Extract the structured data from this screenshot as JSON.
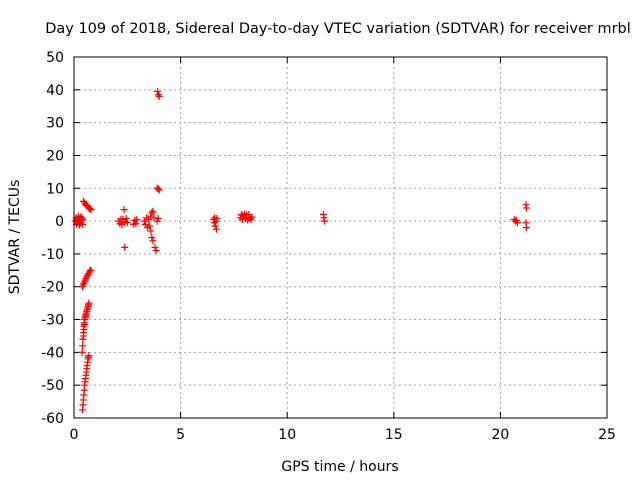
{
  "chart_data": {
    "type": "scatter",
    "title": "Day 109 of 2018, Sidereal Day-to-day VTEC variation (SDTVAR) for receiver mrbl",
    "xlabel": "GPS time / hours",
    "ylabel": "SDTVAR / TECUs",
    "xlim": [
      0,
      25
    ],
    "ylim": [
      -60,
      50
    ],
    "xticks": [
      0,
      5,
      10,
      15,
      20,
      25
    ],
    "yticks": [
      -60,
      -50,
      -40,
      -30,
      -20,
      -10,
      0,
      10,
      20,
      30,
      40,
      50
    ],
    "xtick_labels": [
      "0",
      "5",
      "10",
      "15",
      "20",
      "25"
    ],
    "ytick_labels": [
      "-60",
      "-50",
      "-40",
      "-30",
      "-20",
      "-10",
      "0",
      "10",
      "20",
      "30",
      "40",
      "50"
    ],
    "grid": true,
    "marker": "plus",
    "color": "#ff0000",
    "series": [
      {
        "name": "SDTVAR",
        "points": [
          [
            0.05,
            0.0
          ],
          [
            0.1,
            1.0
          ],
          [
            0.12,
            -1.0
          ],
          [
            0.15,
            0.5
          ],
          [
            0.18,
            -0.5
          ],
          [
            0.2,
            1.5
          ],
          [
            0.22,
            0.0
          ],
          [
            0.25,
            -1.2
          ],
          [
            0.28,
            0.8
          ],
          [
            0.3,
            1.2
          ],
          [
            0.32,
            -0.6
          ],
          [
            0.35,
            0.3
          ],
          [
            0.38,
            1.0
          ],
          [
            0.4,
            -1.0
          ],
          [
            0.42,
            0.5
          ],
          [
            0.45,
            6.0
          ],
          [
            0.5,
            5.5
          ],
          [
            0.55,
            5.0
          ],
          [
            0.6,
            4.8
          ],
          [
            0.65,
            4.5
          ],
          [
            0.7,
            4.0
          ],
          [
            0.75,
            3.8
          ],
          [
            0.8,
            3.5
          ],
          [
            0.4,
            -20.0
          ],
          [
            0.43,
            -19.5
          ],
          [
            0.46,
            -19.0
          ],
          [
            0.5,
            -18.5
          ],
          [
            0.53,
            -18.0
          ],
          [
            0.56,
            -17.5
          ],
          [
            0.6,
            -17.0
          ],
          [
            0.64,
            -16.5
          ],
          [
            0.68,
            -16.0
          ],
          [
            0.72,
            -15.5
          ],
          [
            0.76,
            -15.0
          ],
          [
            0.8,
            -15.0
          ],
          [
            0.38,
            -40.0
          ],
          [
            0.4,
            -38.0
          ],
          [
            0.42,
            -36.0
          ],
          [
            0.44,
            -34.0
          ],
          [
            0.46,
            -32.0
          ],
          [
            0.48,
            -31.0
          ],
          [
            0.5,
            -30.0
          ],
          [
            0.52,
            -29.5
          ],
          [
            0.54,
            -29.0
          ],
          [
            0.56,
            -28.5
          ],
          [
            0.58,
            -28.0
          ],
          [
            0.6,
            -27.5
          ],
          [
            0.62,
            -27.0
          ],
          [
            0.64,
            -26.5
          ],
          [
            0.66,
            -26.0
          ],
          [
            0.68,
            -25.5
          ],
          [
            0.7,
            -25.0
          ],
          [
            0.45,
            -35.0
          ],
          [
            0.47,
            -33.0
          ],
          [
            0.49,
            -31.5
          ],
          [
            0.4,
            -57.5
          ],
          [
            0.42,
            -56.0
          ],
          [
            0.44,
            -54.5
          ],
          [
            0.46,
            -53.0
          ],
          [
            0.48,
            -51.5
          ],
          [
            0.5,
            -50.0
          ],
          [
            0.52,
            -49.0
          ],
          [
            0.54,
            -48.0
          ],
          [
            0.56,
            -47.0
          ],
          [
            0.58,
            -46.0
          ],
          [
            0.6,
            -45.0
          ],
          [
            0.62,
            -44.0
          ],
          [
            0.64,
            -43.0
          ],
          [
            0.66,
            -42.0
          ],
          [
            0.68,
            -41.5
          ],
          [
            0.7,
            -41.0
          ],
          [
            2.1,
            0.0
          ],
          [
            2.15,
            -0.8
          ],
          [
            2.2,
            0.6
          ],
          [
            2.25,
            -1.0
          ],
          [
            2.3,
            0.5
          ],
          [
            2.35,
            3.5
          ],
          [
            2.4,
            -0.3
          ],
          [
            2.45,
            0.8
          ],
          [
            2.5,
            -0.5
          ],
          [
            2.38,
            -8.0
          ],
          [
            2.8,
            -1.0
          ],
          [
            2.85,
            0.2
          ],
          [
            2.9,
            -0.8
          ],
          [
            2.95,
            0.5
          ],
          [
            3.3,
            0.0
          ],
          [
            3.35,
            -1.0
          ],
          [
            3.4,
            1.0
          ],
          [
            3.45,
            -2.0
          ],
          [
            3.5,
            0.5
          ],
          [
            3.55,
            -1.5
          ],
          [
            3.6,
            1.5
          ],
          [
            3.65,
            2.5
          ],
          [
            3.7,
            3.0
          ],
          [
            3.75,
            1.0
          ],
          [
            3.6,
            -3.0
          ],
          [
            3.65,
            -5.0
          ],
          [
            3.7,
            -6.0
          ],
          [
            3.8,
            -8.0
          ],
          [
            3.85,
            -9.0
          ],
          [
            3.9,
            0.0
          ],
          [
            3.95,
            0.8
          ],
          [
            3.9,
            10.0
          ],
          [
            3.95,
            9.8
          ],
          [
            4.0,
            9.5
          ],
          [
            3.92,
            39.5
          ],
          [
            3.96,
            38.5
          ],
          [
            4.0,
            38.0
          ],
          [
            6.55,
            0.5
          ],
          [
            6.58,
            -0.5
          ],
          [
            6.6,
            1.0
          ],
          [
            6.62,
            -1.5
          ],
          [
            6.65,
            0.0
          ],
          [
            6.68,
            -2.5
          ],
          [
            6.7,
            0.8
          ],
          [
            7.8,
            1.0
          ],
          [
            7.85,
            2.0
          ],
          [
            7.9,
            0.5
          ],
          [
            7.95,
            1.5
          ],
          [
            8.0,
            2.2
          ],
          [
            8.05,
            0.8
          ],
          [
            8.1,
            1.8
          ],
          [
            8.15,
            0.3
          ],
          [
            8.2,
            2.0
          ],
          [
            8.25,
            1.0
          ],
          [
            8.3,
            0.5
          ],
          [
            8.35,
            1.2
          ],
          [
            7.88,
            1.8
          ],
          [
            8.08,
            1.2
          ],
          [
            8.22,
            0.9
          ],
          [
            11.7,
            2.0
          ],
          [
            11.72,
            1.0
          ],
          [
            11.75,
            0.0
          ],
          [
            20.65,
            0.5
          ],
          [
            20.7,
            0.0
          ],
          [
            20.75,
            0.2
          ],
          [
            20.8,
            -0.5
          ],
          [
            21.2,
            5.0
          ],
          [
            21.22,
            4.0
          ],
          [
            21.2,
            -0.5
          ],
          [
            21.22,
            -2.0
          ]
        ]
      }
    ]
  }
}
